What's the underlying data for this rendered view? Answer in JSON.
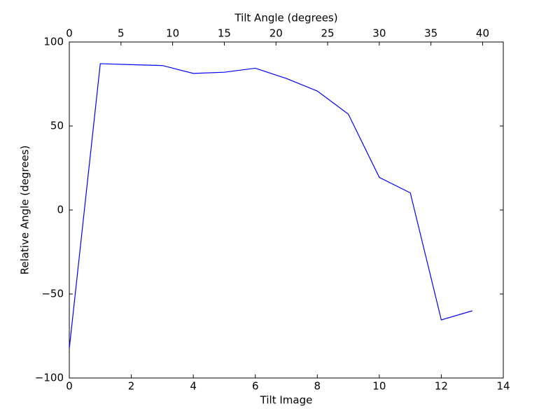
{
  "chart_data": {
    "type": "line",
    "xlabel": "Tilt Image",
    "ylabel": "Relative Angle (degrees)",
    "x2label": "Tilt Angle (degrees)",
    "x": [
      0,
      1,
      2,
      3,
      4,
      5,
      6,
      7,
      8,
      9,
      10,
      11,
      12,
      13
    ],
    "series": [
      {
        "name": "Relative Angle",
        "color": "#0000ff",
        "values": [
          -82.5,
          87.1,
          86.5,
          86,
          81.3,
          82,
          84.4,
          78.3,
          70.8,
          57.1,
          19.4,
          10.2,
          -65.4,
          -60
        ]
      }
    ],
    "xlim": [
      0,
      14
    ],
    "xticks": [
      0,
      2,
      4,
      6,
      8,
      10,
      12,
      14
    ],
    "x2lim": [
      0,
      42
    ],
    "x2ticks": [
      0,
      5,
      10,
      15,
      20,
      25,
      30,
      35,
      40
    ],
    "ylim": [
      -100,
      100
    ],
    "yticks": [
      {
        "value": -100,
        "label": "−100"
      },
      {
        "value": -50,
        "label": "−50"
      },
      0,
      50,
      100
    ],
    "grid": false
  }
}
